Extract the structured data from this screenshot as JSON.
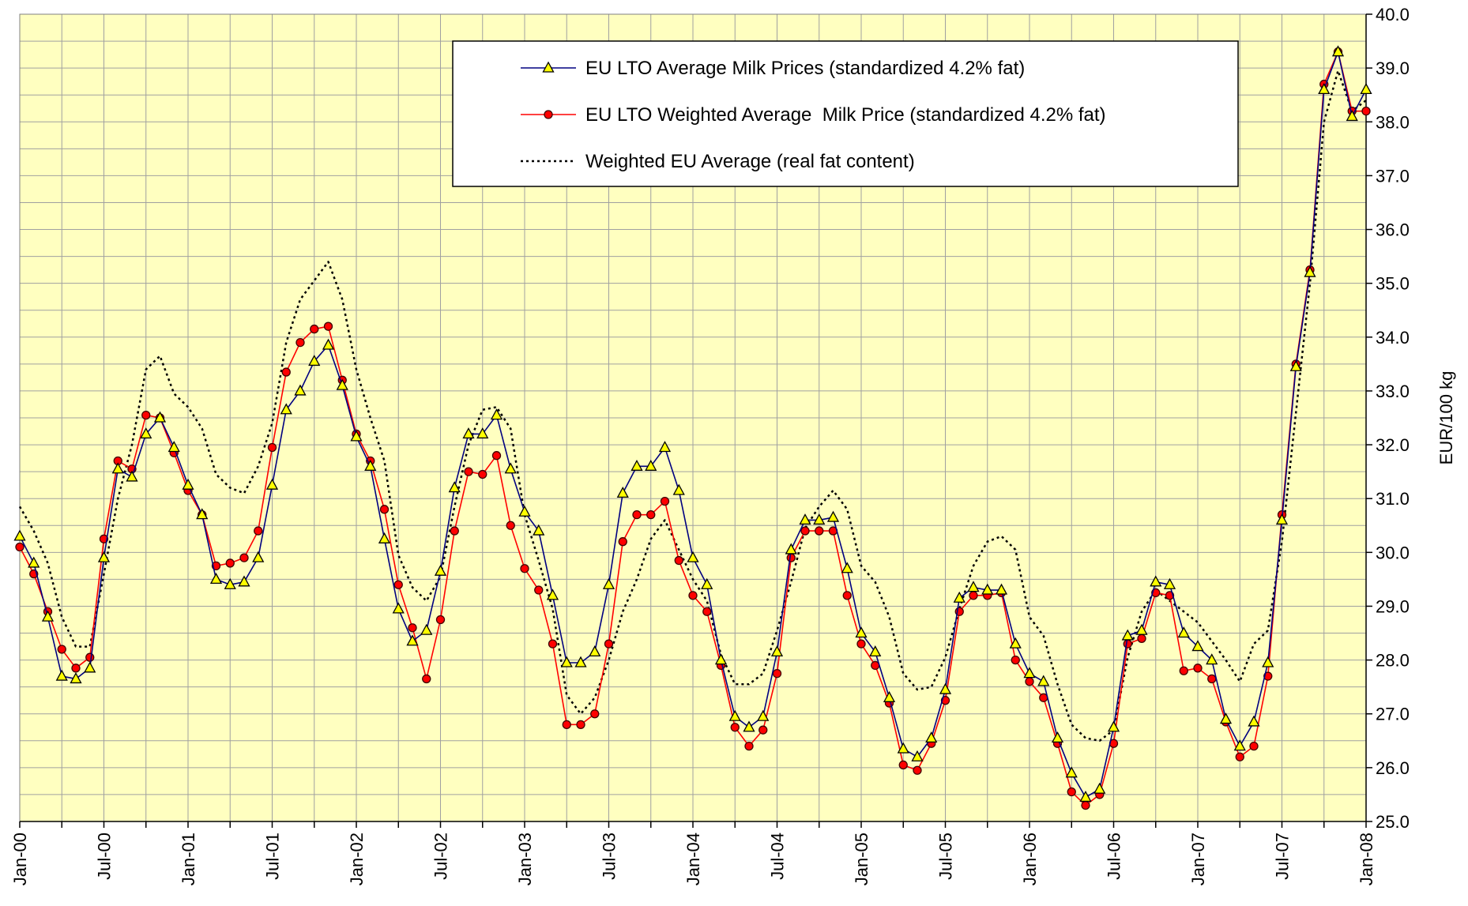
{
  "chart_data": {
    "type": "line",
    "y_label": "EUR/100 kg",
    "categories": [
      "Jan-00",
      null,
      null,
      null,
      null,
      null,
      "Jul-00",
      null,
      null,
      null,
      null,
      null,
      "Jan-01",
      null,
      null,
      null,
      null,
      null,
      "Jul-01",
      null,
      null,
      null,
      null,
      null,
      "Jan-02",
      null,
      null,
      null,
      null,
      null,
      "Jul-02",
      null,
      null,
      null,
      null,
      null,
      "Jan-03",
      null,
      null,
      null,
      null,
      null,
      "Jul-03",
      null,
      null,
      null,
      null,
      null,
      "Jan-04",
      null,
      null,
      null,
      null,
      null,
      "Jul-04",
      null,
      null,
      null,
      null,
      null,
      "Jan-05",
      null,
      null,
      null,
      null,
      null,
      "Jul-05",
      null,
      null,
      null,
      null,
      null,
      "Jan-06",
      null,
      null,
      null,
      null,
      null,
      "Jul-06",
      null,
      null,
      null,
      null,
      null,
      "Jan-07",
      null,
      null,
      null,
      null,
      null,
      "Jul-07",
      null,
      null,
      null,
      null,
      null,
      "Jan-08"
    ],
    "series": [
      {
        "name": "EU LTO Average Milk Prices (standardized 4.2% fat)",
        "color": "#000080",
        "marker": "triangle",
        "marker_color": "#ffff00",
        "values": [
          30.3,
          29.8,
          28.8,
          27.7,
          27.65,
          27.85,
          29.9,
          31.55,
          31.4,
          32.2,
          32.5,
          31.95,
          31.25,
          30.7,
          29.5,
          29.4,
          29.45,
          29.9,
          31.25,
          32.65,
          33.0,
          33.55,
          33.85,
          33.1,
          32.15,
          31.6,
          30.25,
          28.95,
          28.35,
          28.55,
          29.65,
          31.2,
          32.2,
          32.2,
          32.55,
          31.55,
          30.75,
          30.4,
          29.2,
          27.95,
          27.95,
          28.15,
          29.4,
          31.1,
          31.6,
          31.6,
          31.95,
          31.15,
          29.9,
          29.4,
          28.0,
          26.95,
          26.75,
          26.95,
          28.15,
          30.05,
          30.6,
          30.6,
          30.65,
          29.7,
          28.5,
          28.15,
          27.3,
          26.35,
          26.2,
          26.55,
          27.45,
          29.15,
          29.35,
          29.3,
          29.3,
          28.3,
          27.75,
          27.6,
          26.55,
          25.9,
          25.45,
          25.6,
          26.75,
          28.45,
          28.55,
          29.45,
          29.4,
          28.5,
          28.25,
          28.0,
          26.9,
          26.4,
          26.85,
          27.95,
          30.6,
          33.45,
          35.2,
          38.6,
          39.3,
          38.1,
          38.6
        ]
      },
      {
        "name": "EU LTO Weighted Average  Milk Price (standardized 4.2% fat)",
        "color": "#ff0000",
        "marker": "circle",
        "marker_color": "#ff0000",
        "values": [
          30.1,
          29.6,
          28.9,
          28.2,
          27.85,
          28.05,
          30.25,
          31.7,
          31.55,
          32.55,
          32.5,
          31.85,
          31.15,
          30.7,
          29.75,
          29.8,
          29.9,
          30.4,
          31.95,
          33.35,
          33.9,
          34.15,
          34.2,
          33.2,
          32.2,
          31.7,
          30.8,
          29.4,
          28.6,
          27.65,
          28.75,
          30.4,
          31.5,
          31.45,
          31.8,
          30.5,
          29.7,
          29.3,
          28.3,
          26.8,
          26.8,
          27.0,
          28.3,
          30.2,
          30.7,
          30.7,
          30.95,
          29.85,
          29.2,
          28.9,
          27.9,
          26.75,
          26.4,
          26.7,
          27.75,
          29.9,
          30.4,
          30.4,
          30.4,
          29.2,
          28.3,
          27.9,
          27.2,
          26.05,
          25.95,
          26.45,
          27.25,
          28.9,
          29.2,
          29.2,
          29.25,
          28.0,
          27.6,
          27.3,
          26.45,
          25.55,
          25.3,
          25.5,
          26.45,
          28.3,
          28.4,
          29.25,
          29.2,
          27.8,
          27.85,
          27.65,
          26.85,
          26.2,
          26.4,
          27.7,
          30.7,
          33.5,
          35.25,
          38.7,
          39.3,
          38.2,
          38.2
        ]
      },
      {
        "name": "Weighted EU Average (real fat content)",
        "color": "#000000",
        "dashed": true,
        "values": [
          30.85,
          30.4,
          29.8,
          28.8,
          28.25,
          28.25,
          29.6,
          31.0,
          32.0,
          33.4,
          33.65,
          32.95,
          32.7,
          32.3,
          31.45,
          31.2,
          31.1,
          31.6,
          32.4,
          33.9,
          34.7,
          35.05,
          35.4,
          34.7,
          33.4,
          32.5,
          31.7,
          29.95,
          29.35,
          29.1,
          29.55,
          30.85,
          32.0,
          32.65,
          32.7,
          32.3,
          30.7,
          29.85,
          28.95,
          27.35,
          27.0,
          27.3,
          28.0,
          28.9,
          29.5,
          30.25,
          30.6,
          30.05,
          29.5,
          29.1,
          28.1,
          27.55,
          27.55,
          27.75,
          28.55,
          29.45,
          30.45,
          30.85,
          31.15,
          30.8,
          29.75,
          29.45,
          28.8,
          27.75,
          27.45,
          27.5,
          28.05,
          28.95,
          29.75,
          30.2,
          30.3,
          30.05,
          28.8,
          28.45,
          27.55,
          26.8,
          26.55,
          26.5,
          26.7,
          28.05,
          28.9,
          29.3,
          29.1,
          28.9,
          28.7,
          28.35,
          28.0,
          27.6,
          28.3,
          28.55,
          30.2,
          32.6,
          35.0,
          38.0,
          38.95,
          38.2,
          38.4
        ]
      }
    ],
    "ylim": [
      25,
      40
    ],
    "yticks": [
      {
        "value": 25,
        "label": "25.0"
      },
      {
        "value": 26,
        "label": "26.0"
      },
      {
        "value": 27,
        "label": "27.0"
      },
      {
        "value": 28,
        "label": "28.0"
      },
      {
        "value": 29,
        "label": "29.0"
      },
      {
        "value": 30,
        "label": "30.0"
      },
      {
        "value": 31,
        "label": "31.0"
      },
      {
        "value": 32,
        "label": "32.0"
      },
      {
        "value": 33,
        "label": "33.0"
      },
      {
        "value": 34,
        "label": "34.0"
      },
      {
        "value": 35,
        "label": "35.0"
      },
      {
        "value": 36,
        "label": "36.0"
      },
      {
        "value": 37,
        "label": "37.0"
      },
      {
        "value": 38,
        "label": "38.0"
      },
      {
        "value": 39,
        "label": "39.0"
      },
      {
        "value": 40,
        "label": "40.0"
      }
    ],
    "ygrid": [
      25,
      25.5,
      26,
      26.5,
      27,
      27.5,
      28,
      28.5,
      29,
      29.5,
      30,
      30.5,
      31,
      31.5,
      32,
      32.5,
      33,
      33.5,
      34,
      34.5,
      35,
      35.5,
      36,
      36.5,
      37,
      37.5,
      38,
      38.5,
      39,
      39.5,
      40
    ],
    "yaxis_side": "right",
    "plot_background": "#ffffc0",
    "grid": true,
    "legend": "top-right"
  }
}
